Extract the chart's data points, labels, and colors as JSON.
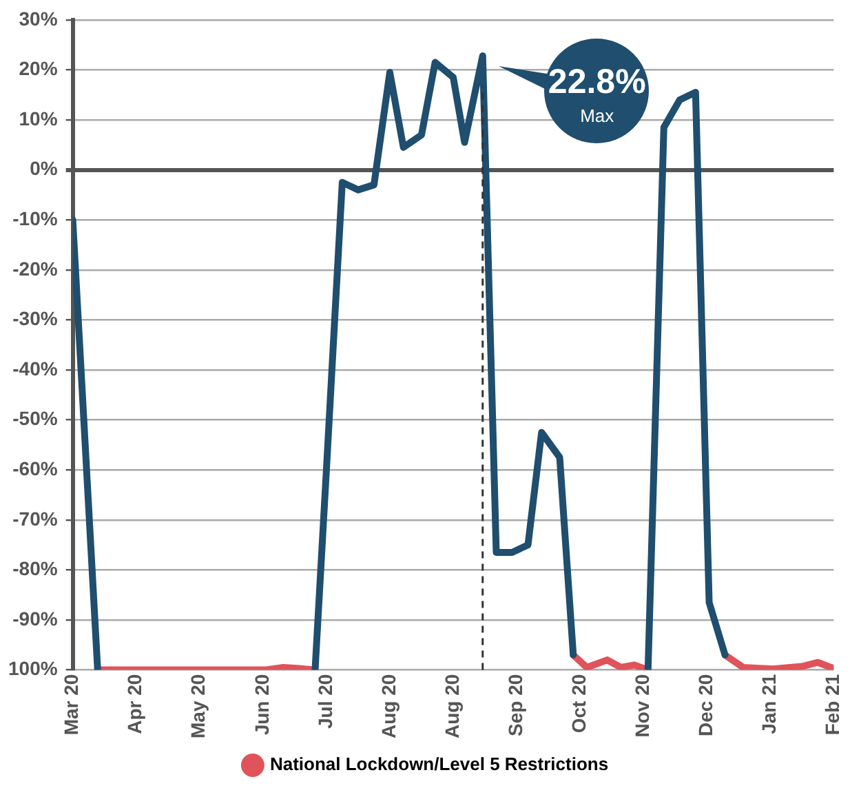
{
  "chart_data": {
    "type": "line",
    "x": [
      "2020-03-15",
      "2020-03-26",
      "2020-06-08",
      "2020-06-16",
      "2020-06-23",
      "2020-06-30",
      "2020-07-05",
      "2020-07-12",
      "2020-07-19",
      "2020-07-26",
      "2020-08-02",
      "2020-08-08",
      "2020-08-16",
      "2020-08-22",
      "2020-08-30",
      "2020-09-04",
      "2020-09-12",
      "2020-09-18",
      "2020-09-25",
      "2020-10-02",
      "2020-10-08",
      "2020-10-16",
      "2020-10-22",
      "2020-10-28",
      "2020-11-06",
      "2020-11-12",
      "2020-11-18",
      "2020-11-24",
      "2020-12-01",
      "2020-12-08",
      "2020-12-15",
      "2020-12-21",
      "2020-12-28",
      "2021-01-05",
      "2021-01-18",
      "2021-01-31",
      "2021-02-07",
      "2021-02-14"
    ],
    "series": [
      {
        "color": "#1f4e6e",
        "values": [
          -10,
          -100,
          null,
          null,
          null,
          -100,
          -60,
          -2.5,
          -4,
          -3,
          19.5,
          4.5,
          7,
          21.5,
          18.5,
          5.5,
          22.8,
          -76.5,
          -76.5,
          -75,
          -52.5,
          -57.5,
          -97,
          null,
          null,
          null,
          null,
          -100,
          8.5,
          14,
          15.5,
          -86.5,
          -97,
          null,
          null,
          null,
          null,
          null
        ]
      },
      {
        "name": "National Lockdown/Level 5 Restrictions",
        "color": "#e0535a",
        "values": [
          null,
          -100,
          -100,
          -99.5,
          -99.7,
          -100,
          null,
          null,
          null,
          null,
          null,
          null,
          null,
          null,
          null,
          null,
          null,
          null,
          null,
          null,
          null,
          null,
          -97,
          -99.5,
          -98,
          -99.5,
          -99,
          -100,
          null,
          null,
          null,
          null,
          -97,
          -99.5,
          -99.8,
          -99.3,
          -98.5,
          -99.7
        ]
      }
    ],
    "xlim": [
      "2020-03-15",
      "2021-02-14"
    ],
    "xticks": [
      {
        "value": "2020-03-15",
        "label": "Mar 20"
      },
      {
        "value": "2020-04-12",
        "label": "Apr 20"
      },
      {
        "value": "2020-05-10",
        "label": "May 20"
      },
      {
        "value": "2020-06-07",
        "label": "Jun 20"
      },
      {
        "value": "2020-07-05",
        "label": "Jul 20"
      },
      {
        "value": "2020-08-02",
        "label": "Aug 20"
      },
      {
        "value": "2020-08-30",
        "label": "Aug 20"
      },
      {
        "value": "2020-09-27",
        "label": "Sep 20"
      },
      {
        "value": "2020-10-25",
        "label": "Oct 20"
      },
      {
        "value": "2020-11-22",
        "label": "Nov 20"
      },
      {
        "value": "2020-12-20",
        "label": "Dec 20"
      },
      {
        "value": "2021-01-17",
        "label": "Jan 21"
      },
      {
        "value": "2021-02-14",
        "label": "Feb 21"
      }
    ],
    "ylim": [
      -100,
      30
    ],
    "yticks": [
      {
        "value": 30,
        "label": "30%"
      },
      {
        "value": 20,
        "label": "20%"
      },
      {
        "value": 10,
        "label": "10%"
      },
      {
        "value": 0,
        "label": "0%"
      },
      {
        "value": -10,
        "label": "-10%"
      },
      {
        "value": -20,
        "label": "-20%"
      },
      {
        "value": -30,
        "label": "-30%"
      },
      {
        "value": -40,
        "label": "-40%"
      },
      {
        "value": -50,
        "label": "-50%"
      },
      {
        "value": -60,
        "label": "-60%"
      },
      {
        "value": -70,
        "label": "-70%"
      },
      {
        "value": -80,
        "label": "-80%"
      },
      {
        "value": -90,
        "label": "-90%"
      },
      {
        "value": -100,
        "label": "100%"
      }
    ],
    "ref_lines": [
      {
        "axis": "x",
        "value": "2020-09-12",
        "color": "#333333",
        "line_style": "dashed"
      }
    ],
    "annotations": [
      {
        "text": "22.8%",
        "x": "2020-09-12",
        "y": 22.8
      },
      "Max"
    ],
    "grid": "y",
    "legend": "bottom",
    "marker": "none",
    "line_style": "solid"
  }
}
